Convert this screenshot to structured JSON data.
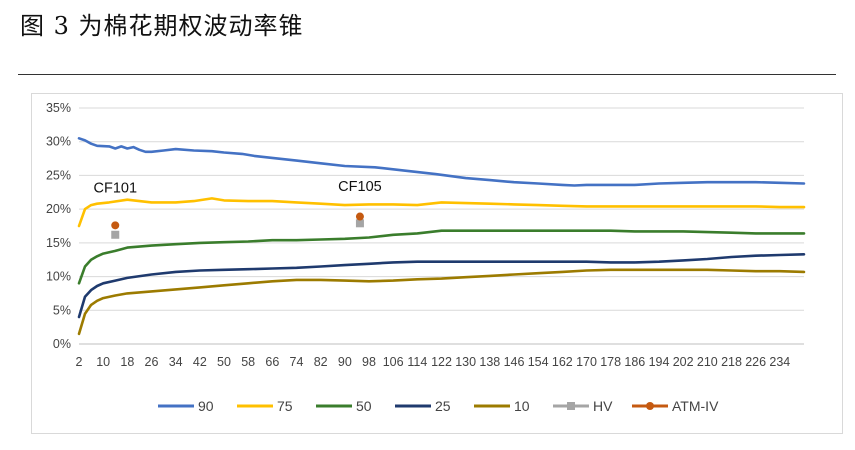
{
  "figure_title": "图 3 为棉花期权波动率锥",
  "chart_data": {
    "type": "line",
    "title": "",
    "xlabel": "",
    "ylabel": "",
    "ylim": [
      0,
      0.35
    ],
    "yticks": [
      "0%",
      "5%",
      "10%",
      "15%",
      "20%",
      "25%",
      "30%",
      "35%"
    ],
    "x_range": [
      2,
      242
    ],
    "xticks": [
      2,
      10,
      18,
      26,
      34,
      42,
      50,
      58,
      66,
      74,
      82,
      90,
      98,
      106,
      114,
      122,
      130,
      138,
      146,
      154,
      162,
      170,
      178,
      186,
      194,
      202,
      210,
      218,
      226,
      234
    ],
    "grid": "horizontal",
    "legend_position": "bottom",
    "series": [
      {
        "name": "90",
        "color": "#4472C4",
        "x": [
          2,
          4,
          6,
          8,
          12,
          14,
          16,
          18,
          20,
          22,
          24,
          26,
          30,
          34,
          40,
          46,
          50,
          56,
          60,
          66,
          74,
          82,
          90,
          100,
          110,
          120,
          130,
          138,
          146,
          154,
          162,
          166,
          170,
          178,
          186,
          194,
          202,
          210,
          218,
          226,
          234,
          242
        ],
        "y": [
          0.305,
          0.302,
          0.297,
          0.294,
          0.293,
          0.29,
          0.293,
          0.29,
          0.292,
          0.288,
          0.285,
          0.285,
          0.287,
          0.289,
          0.287,
          0.286,
          0.284,
          0.282,
          0.279,
          0.276,
          0.272,
          0.268,
          0.264,
          0.262,
          0.257,
          0.252,
          0.246,
          0.243,
          0.24,
          0.238,
          0.236,
          0.235,
          0.236,
          0.236,
          0.236,
          0.238,
          0.239,
          0.24,
          0.24,
          0.24,
          0.239,
          0.238
        ]
      },
      {
        "name": "75",
        "color": "#FFC000",
        "x": [
          2,
          4,
          6,
          8,
          12,
          18,
          26,
          34,
          40,
          46,
          50,
          58,
          66,
          74,
          82,
          90,
          98,
          106,
          114,
          122,
          130,
          138,
          146,
          154,
          162,
          170,
          178,
          186,
          194,
          202,
          210,
          218,
          226,
          234,
          242
        ],
        "y": [
          0.175,
          0.2,
          0.206,
          0.208,
          0.21,
          0.214,
          0.21,
          0.21,
          0.212,
          0.216,
          0.213,
          0.212,
          0.212,
          0.21,
          0.208,
          0.206,
          0.207,
          0.207,
          0.206,
          0.21,
          0.209,
          0.208,
          0.207,
          0.206,
          0.205,
          0.204,
          0.204,
          0.204,
          0.204,
          0.204,
          0.204,
          0.204,
          0.204,
          0.203,
          0.203
        ]
      },
      {
        "name": "50",
        "color": "#3A7D2C",
        "x": [
          2,
          4,
          6,
          8,
          10,
          14,
          18,
          26,
          34,
          42,
          50,
          58,
          66,
          74,
          82,
          90,
          98,
          106,
          114,
          122,
          130,
          138,
          146,
          154,
          162,
          170,
          178,
          186,
          194,
          202,
          210,
          218,
          226,
          234,
          242
        ],
        "y": [
          0.09,
          0.115,
          0.125,
          0.13,
          0.134,
          0.138,
          0.143,
          0.146,
          0.148,
          0.15,
          0.151,
          0.152,
          0.154,
          0.154,
          0.155,
          0.156,
          0.158,
          0.162,
          0.164,
          0.168,
          0.168,
          0.168,
          0.168,
          0.168,
          0.168,
          0.168,
          0.168,
          0.167,
          0.167,
          0.167,
          0.166,
          0.165,
          0.164,
          0.164,
          0.164
        ]
      },
      {
        "name": "25",
        "color": "#1F3A6E",
        "x": [
          2,
          4,
          6,
          8,
          10,
          14,
          18,
          26,
          34,
          42,
          50,
          58,
          66,
          74,
          82,
          90,
          98,
          106,
          114,
          122,
          130,
          138,
          146,
          154,
          162,
          170,
          178,
          186,
          194,
          202,
          210,
          218,
          226,
          234,
          242
        ],
        "y": [
          0.04,
          0.07,
          0.08,
          0.086,
          0.09,
          0.094,
          0.098,
          0.103,
          0.107,
          0.109,
          0.11,
          0.111,
          0.112,
          0.113,
          0.115,
          0.117,
          0.119,
          0.121,
          0.122,
          0.122,
          0.122,
          0.122,
          0.122,
          0.122,
          0.122,
          0.122,
          0.121,
          0.121,
          0.122,
          0.124,
          0.126,
          0.129,
          0.131,
          0.132,
          0.133
        ]
      },
      {
        "name": "10",
        "color": "#9C7B00",
        "x": [
          2,
          4,
          6,
          8,
          10,
          14,
          18,
          26,
          34,
          42,
          50,
          58,
          66,
          74,
          82,
          90,
          98,
          106,
          114,
          122,
          130,
          138,
          146,
          154,
          162,
          170,
          178,
          186,
          194,
          202,
          210,
          218,
          226,
          234,
          242
        ],
        "y": [
          0.015,
          0.045,
          0.058,
          0.064,
          0.068,
          0.072,
          0.075,
          0.078,
          0.081,
          0.084,
          0.087,
          0.09,
          0.093,
          0.095,
          0.095,
          0.094,
          0.093,
          0.094,
          0.096,
          0.097,
          0.099,
          0.101,
          0.103,
          0.105,
          0.107,
          0.109,
          0.11,
          0.11,
          0.11,
          0.11,
          0.11,
          0.109,
          0.108,
          0.108,
          0.107
        ]
      }
    ],
    "points": [
      {
        "name": "HV",
        "color": "#A5A5A5",
        "marker": "square",
        "values": [
          {
            "x": 14,
            "y": 0.162
          },
          {
            "x": 95,
            "y": 0.179
          }
        ]
      },
      {
        "name": "ATM-IV",
        "color": "#C55A11",
        "marker": "circle",
        "values": [
          {
            "x": 14,
            "y": 0.176
          },
          {
            "x": 95,
            "y": 0.189
          }
        ]
      }
    ],
    "annotations": [
      {
        "text": "CF101",
        "x": 14,
        "y": 0.225
      },
      {
        "text": "CF105",
        "x": 95,
        "y": 0.227
      }
    ]
  }
}
